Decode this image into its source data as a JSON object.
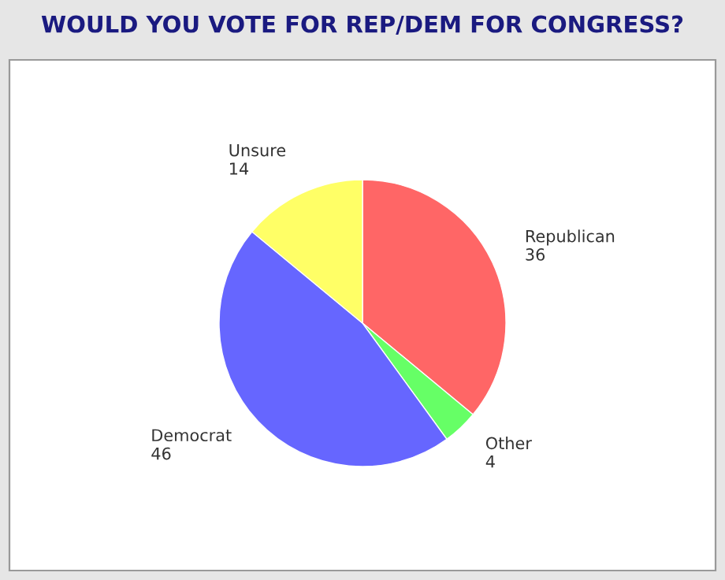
{
  "chart_data": {
    "type": "pie",
    "title": "WOULD YOU VOTE FOR REP/DEM FOR CONGRESS?",
    "categories": [
      "Republican",
      "Other",
      "Democrat",
      "Unsure"
    ],
    "values": [
      36,
      4,
      46,
      14
    ],
    "colors": [
      "#ff6666",
      "#66ff66",
      "#6666ff",
      "#ffff66"
    ],
    "data_labels": true,
    "legend": false
  }
}
